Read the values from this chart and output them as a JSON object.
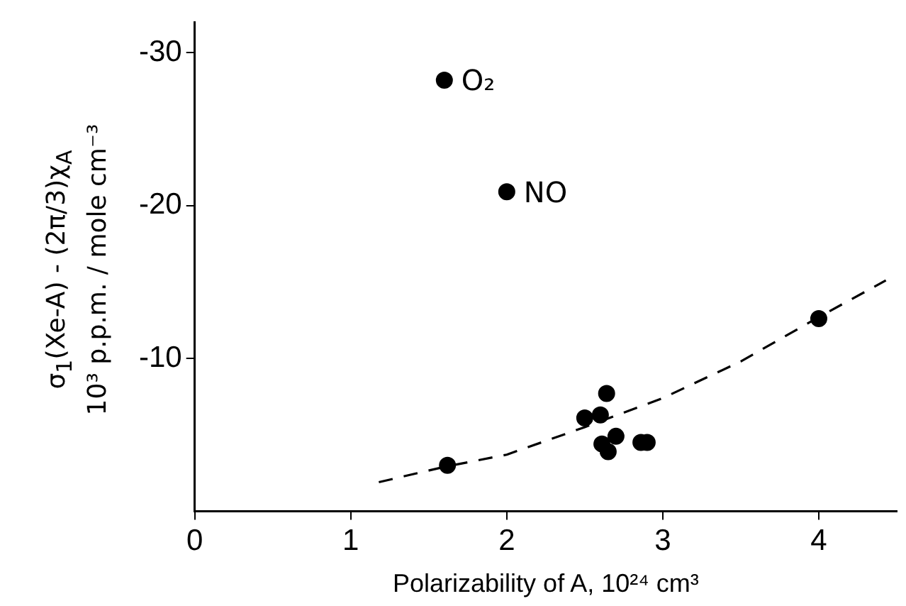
{
  "chart_data": {
    "type": "scatter",
    "xlabel": "Polarizability of A, 10²⁴ cm³",
    "ylabel": "σ$_{1}$(Xe-A) - (2π/3)χ$_{A}$\n10³ p.p.m. / mole cm⁻³",
    "xlim": [
      0,
      4.5
    ],
    "ylim": [
      0,
      -32
    ],
    "xticks": [
      0,
      1,
      2,
      3,
      4
    ],
    "yticks": [
      -30,
      -20,
      -10
    ],
    "grid": false,
    "legend": false,
    "series": [
      {
        "color": "#000000",
        "marker": "circle",
        "x": [
          1.6,
          2.0,
          1.62,
          4.0,
          2.64,
          2.5,
          2.6,
          2.61,
          2.7,
          2.65,
          2.86,
          2.9
        ],
        "values": [
          -28.2,
          -20.9,
          -3.0,
          -12.6,
          -7.7,
          -6.1,
          -6.3,
          -4.4,
          -4.9,
          -3.9,
          -4.5,
          -4.5
        ]
      },
      {
        "type": "line",
        "color": "#000000",
        "marker": "none",
        "line_style": "dashed",
        "x": [
          1.18,
          1.6,
          2.0,
          2.5,
          3.0,
          3.5,
          4.0,
          4.43
        ],
        "values": [
          -1.9,
          -2.9,
          -3.7,
          -5.5,
          -7.4,
          -9.8,
          -12.7,
          -15.1
        ]
      }
    ],
    "annotations": [
      {
        "text": "O₂",
        "x": 1.6,
        "y": -28.2
      },
      {
        "text": "NO",
        "x": 2.0,
        "y": -20.9
      }
    ]
  }
}
